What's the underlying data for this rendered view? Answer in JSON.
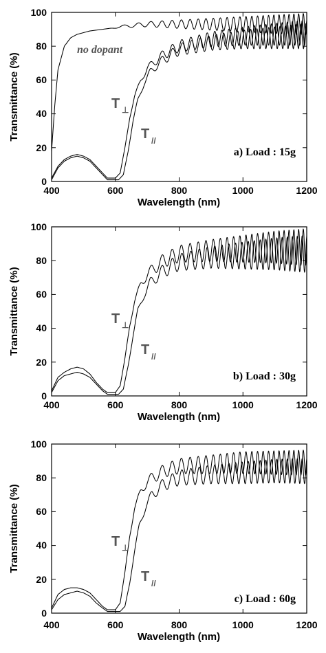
{
  "chart_data": [
    {
      "type": "line",
      "xlabel": "Wavelength (nm)",
      "ylabel": "Transmittance (%)",
      "xlim": [
        400,
        1200
      ],
      "ylim": [
        0,
        100
      ],
      "x_ticks": [
        "400",
        "600",
        "800",
        "1000",
        "1200"
      ],
      "y_ticks": [
        "0",
        "20",
        "40",
        "60",
        "80",
        "100"
      ],
      "annotation": "a) Load : 15g",
      "series": [
        {
          "name": "no dopant",
          "base": [
            [
              400,
              18
            ],
            [
              410,
              45
            ],
            [
              420,
              66
            ],
            [
              440,
              80
            ],
            [
              460,
              85
            ],
            [
              480,
              87
            ],
            [
              500,
              88
            ],
            [
              520,
              89
            ],
            [
              540,
              89.5
            ],
            [
              560,
              90
            ],
            [
              580,
              90.5
            ],
            [
              600,
              91
            ],
            [
              640,
              92
            ],
            [
              700,
              93
            ],
            [
              800,
              93
            ],
            [
              900,
              93
            ],
            [
              1000,
              93
            ],
            [
              1100,
              93
            ],
            [
              1200,
              93
            ]
          ],
          "fringe_amp": [
            [
              400,
              0
            ],
            [
              580,
              0
            ],
            [
              620,
              0.8
            ],
            [
              700,
              1.5
            ],
            [
              800,
              2.5
            ],
            [
              900,
              3.5
            ],
            [
              1000,
              4.5
            ],
            [
              1100,
              5.5
            ],
            [
              1200,
              6.5
            ]
          ],
          "fringe_cycles": 28
        },
        {
          "name": "T⊥",
          "base": [
            [
              400,
              2
            ],
            [
              420,
              9
            ],
            [
              440,
              13
            ],
            [
              460,
              15
            ],
            [
              480,
              16
            ],
            [
              500,
              15
            ],
            [
              520,
              13
            ],
            [
              540,
              9
            ],
            [
              560,
              5
            ],
            [
              575,
              2
            ],
            [
              600,
              2
            ],
            [
              615,
              5
            ],
            [
              630,
              20
            ],
            [
              645,
              38
            ],
            [
              660,
              50
            ],
            [
              680,
              60
            ],
            [
              700,
              67
            ],
            [
              750,
              75
            ],
            [
              800,
              80
            ],
            [
              900,
              84
            ],
            [
              1000,
              86
            ],
            [
              1100,
              87
            ],
            [
              1200,
              88
            ]
          ],
          "fringe_amp": [
            [
              400,
              0
            ],
            [
              620,
              0
            ],
            [
              660,
              1
            ],
            [
              700,
              2
            ],
            [
              800,
              3.5
            ],
            [
              900,
              4.5
            ],
            [
              1000,
              5.5
            ],
            [
              1100,
              6.5
            ],
            [
              1200,
              7.5
            ]
          ],
          "fringe_cycles": 27
        },
        {
          "name": "T//",
          "base": [
            [
              400,
              1
            ],
            [
              420,
              8
            ],
            [
              440,
              12
            ],
            [
              460,
              14
            ],
            [
              480,
              15
            ],
            [
              500,
              14
            ],
            [
              520,
              12
            ],
            [
              540,
              8
            ],
            [
              560,
              4
            ],
            [
              575,
              1
            ],
            [
              610,
              1
            ],
            [
              625,
              4
            ],
            [
              640,
              18
            ],
            [
              655,
              35
            ],
            [
              670,
              48
            ],
            [
              690,
              58
            ],
            [
              710,
              65
            ],
            [
              750,
              72
            ],
            [
              800,
              78
            ],
            [
              900,
              82
            ],
            [
              1000,
              84
            ],
            [
              1100,
              85
            ],
            [
              1200,
              86
            ]
          ],
          "fringe_amp": [
            [
              400,
              0
            ],
            [
              630,
              0
            ],
            [
              670,
              1
            ],
            [
              710,
              2
            ],
            [
              800,
              3.5
            ],
            [
              900,
              4.5
            ],
            [
              1000,
              5.5
            ],
            [
              1100,
              6.5
            ],
            [
              1200,
              7.5
            ]
          ],
          "fringe_cycles": 26
        }
      ]
    },
    {
      "type": "line",
      "xlabel": "Wavelength (nm)",
      "ylabel": "Transmittance (%)",
      "xlim": [
        400,
        1200
      ],
      "ylim": [
        0,
        100
      ],
      "x_ticks": [
        "400",
        "600",
        "800",
        "1000",
        "1200"
      ],
      "y_ticks": [
        "0",
        "20",
        "40",
        "60",
        "80",
        "100"
      ],
      "annotation": "b) Load : 30g",
      "series": [
        {
          "name": "T⊥",
          "base": [
            [
              400,
              3
            ],
            [
              420,
              11
            ],
            [
              440,
              14
            ],
            [
              460,
              16
            ],
            [
              480,
              17
            ],
            [
              500,
              16
            ],
            [
              520,
              13
            ],
            [
              540,
              8
            ],
            [
              560,
              4
            ],
            [
              575,
              2
            ],
            [
              600,
              2
            ],
            [
              615,
              6
            ],
            [
              630,
              22
            ],
            [
              645,
              42
            ],
            [
              660,
              56
            ],
            [
              680,
              66
            ],
            [
              700,
              72
            ],
            [
              750,
              80
            ],
            [
              800,
              84
            ],
            [
              900,
              86
            ],
            [
              1000,
              87
            ],
            [
              1100,
              88
            ],
            [
              1200,
              88
            ]
          ],
          "fringe_amp": [
            [
              400,
              0
            ],
            [
              620,
              0
            ],
            [
              660,
              1.5
            ],
            [
              700,
              3
            ],
            [
              800,
              5
            ],
            [
              900,
              6.5
            ],
            [
              1000,
              8
            ],
            [
              1100,
              9.5
            ],
            [
              1200,
              11
            ]
          ],
          "fringe_cycles": 28
        },
        {
          "name": "T//",
          "base": [
            [
              400,
              2
            ],
            [
              420,
              9
            ],
            [
              440,
              12
            ],
            [
              460,
              13
            ],
            [
              480,
              14
            ],
            [
              500,
              13
            ],
            [
              520,
              11
            ],
            [
              540,
              7
            ],
            [
              560,
              3
            ],
            [
              575,
              1
            ],
            [
              610,
              1
            ],
            [
              625,
              4
            ],
            [
              640,
              18
            ],
            [
              655,
              35
            ],
            [
              670,
              50
            ],
            [
              690,
              60
            ],
            [
              710,
              67
            ],
            [
              750,
              74
            ],
            [
              800,
              79
            ],
            [
              900,
              82
            ],
            [
              1000,
              83
            ],
            [
              1100,
              84
            ],
            [
              1200,
              84
            ]
          ],
          "fringe_amp": [
            [
              400,
              0
            ],
            [
              630,
              0
            ],
            [
              670,
              1.5
            ],
            [
              710,
              3
            ],
            [
              800,
              5
            ],
            [
              900,
              6.5
            ],
            [
              1000,
              8
            ],
            [
              1100,
              9.5
            ],
            [
              1200,
              11
            ]
          ],
          "fringe_cycles": 27
        }
      ]
    },
    {
      "type": "line",
      "xlabel": "Wavelength (nm)",
      "ylabel": "Transmittance (%)",
      "xlim": [
        400,
        1200
      ],
      "ylim": [
        0,
        100
      ],
      "x_ticks": [
        "400",
        "600",
        "800",
        "1000",
        "1200"
      ],
      "y_ticks": [
        "0",
        "20",
        "40",
        "60",
        "80",
        "100"
      ],
      "annotation": "c) Load : 60g",
      "series": [
        {
          "name": "T⊥",
          "base": [
            [
              400,
              3
            ],
            [
              420,
              11
            ],
            [
              440,
              14
            ],
            [
              460,
              15
            ],
            [
              480,
              15
            ],
            [
              500,
              14
            ],
            [
              520,
              12
            ],
            [
              540,
              8
            ],
            [
              560,
              4
            ],
            [
              575,
              2
            ],
            [
              600,
              2
            ],
            [
              615,
              6
            ],
            [
              630,
              24
            ],
            [
              645,
              46
            ],
            [
              660,
              62
            ],
            [
              680,
              72
            ],
            [
              700,
              78
            ],
            [
              750,
              84
            ],
            [
              800,
              87
            ],
            [
              900,
              88
            ],
            [
              1000,
              89
            ],
            [
              1100,
              89
            ],
            [
              1200,
              89
            ]
          ],
          "fringe_amp": [
            [
              400,
              0
            ],
            [
              620,
              0
            ],
            [
              660,
              1.5
            ],
            [
              700,
              3
            ],
            [
              800,
              4.5
            ],
            [
              900,
              5.5
            ],
            [
              1000,
              6.5
            ],
            [
              1100,
              7
            ],
            [
              1200,
              7.5
            ]
          ],
          "fringe_cycles": 28
        },
        {
          "name": "T//",
          "base": [
            [
              400,
              2
            ],
            [
              420,
              8
            ],
            [
              440,
              11
            ],
            [
              460,
              12
            ],
            [
              480,
              13
            ],
            [
              500,
              12
            ],
            [
              520,
              10
            ],
            [
              540,
              6
            ],
            [
              560,
              3
            ],
            [
              575,
              1
            ],
            [
              615,
              1
            ],
            [
              630,
              4
            ],
            [
              645,
              18
            ],
            [
              660,
              36
            ],
            [
              675,
              52
            ],
            [
              695,
              63
            ],
            [
              715,
              70
            ],
            [
              750,
              76
            ],
            [
              800,
              80
            ],
            [
              900,
              82
            ],
            [
              1000,
              83
            ],
            [
              1100,
              84
            ],
            [
              1200,
              84
            ]
          ],
          "fringe_amp": [
            [
              400,
              0
            ],
            [
              635,
              0
            ],
            [
              675,
              1.5
            ],
            [
              715,
              3
            ],
            [
              800,
              4.5
            ],
            [
              900,
              5.5
            ],
            [
              1000,
              6.5
            ],
            [
              1100,
              7
            ],
            [
              1200,
              7.5
            ]
          ],
          "fringe_cycles": 27
        }
      ]
    }
  ],
  "panels": [
    {
      "annotation": "a) Load : 15g",
      "curve_labels": {
        "no_dopant": "no dopant",
        "t_perp_main": "T",
        "t_perp_sub": "⊥",
        "t_par_main": "T",
        "t_par_sub": "//"
      }
    },
    {
      "annotation": "b) Load : 30g",
      "curve_labels": {
        "t_perp_main": "T",
        "t_perp_sub": "⊥",
        "t_par_main": "T",
        "t_par_sub": "//"
      }
    },
    {
      "annotation": "c) Load : 60g",
      "curve_labels": {
        "t_perp_main": "T",
        "t_perp_sub": "⊥",
        "t_par_main": "T",
        "t_par_sub": "//"
      }
    }
  ]
}
